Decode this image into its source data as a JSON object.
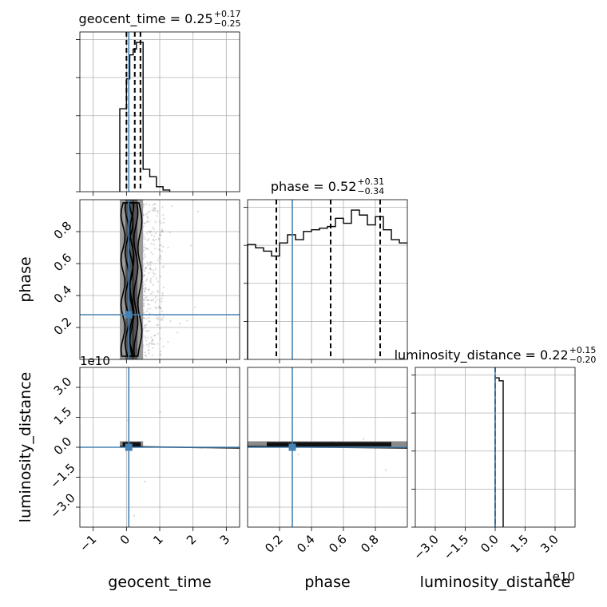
{
  "chart_data": {
    "type": "corner",
    "parameters": [
      "geocent_time",
      "phase",
      "luminosity_distance"
    ],
    "truths": {
      "geocent_time": 0.07,
      "phase": 0.28,
      "luminosity_distance": 0.0
    },
    "titles": [
      {
        "param": "geocent_time",
        "base": "geocent_time = 0.25",
        "plus": "+0.17",
        "minus": "−0.25"
      },
      {
        "param": "phase",
        "base": "phase = 0.52",
        "plus": "+0.31",
        "minus": "−0.34"
      },
      {
        "param": "luminosity_distance",
        "base": "luminosity_distance = 0.22",
        "plus": "+0.15",
        "minus": "−0.20"
      }
    ],
    "axes": {
      "geocent_time": {
        "range": [
          -1.4,
          3.4
        ],
        "ticks": [
          -1,
          0,
          1,
          2,
          3
        ],
        "tick_labels": [
          "−1",
          "0",
          "1",
          "2",
          "3"
        ],
        "label": "geocent_time"
      },
      "phase": {
        "range": [
          0.0,
          1.0
        ],
        "ticks": [
          0.2,
          0.4,
          0.6,
          0.8
        ],
        "tick_labels": [
          "0.2",
          "0.4",
          "0.6",
          "0.8"
        ],
        "label": "phase"
      },
      "luminosity_distance": {
        "range": [
          -4.0,
          4.0
        ],
        "ticks": [
          -3.0,
          -1.5,
          0.0,
          1.5,
          3.0
        ],
        "tick_labels": [
          "−3.0",
          "−1.5",
          "0.0",
          "1.5",
          "3.0"
        ],
        "label": "luminosity_distance",
        "offset_text": "1e10"
      }
    },
    "histograms": {
      "geocent_time": {
        "bin_edges": [
          -0.2,
          0.0,
          0.1,
          0.2,
          0.3,
          0.5,
          0.7,
          0.9,
          1.1,
          1.3
        ],
        "counts": [
          1.0,
          1.36,
          1.65,
          1.72,
          1.8,
          0.27,
          0.18,
          0.06,
          0.02
        ],
        "quantiles": [
          0.0,
          0.25,
          0.42
        ]
      },
      "phase": {
        "bin_edges": [
          0.0,
          0.05,
          0.1,
          0.15,
          0.2,
          0.25,
          0.3,
          0.35,
          0.4,
          0.45,
          0.5,
          0.55,
          0.6,
          0.65,
          0.7,
          0.75,
          0.8,
          0.85,
          0.9,
          0.95,
          1.0
        ],
        "counts": [
          0.7,
          0.68,
          0.66,
          0.63,
          0.71,
          0.76,
          0.73,
          0.78,
          0.79,
          0.8,
          0.81,
          0.86,
          0.83,
          0.91,
          0.88,
          0.82,
          0.87,
          0.79,
          0.73,
          0.71
        ],
        "quantiles": [
          0.18,
          0.52,
          0.83
        ]
      },
      "luminosity_distance": {
        "bin_edges": [
          0.0,
          0.2,
          0.4
        ],
        "counts": [
          1.0,
          0.98
        ],
        "quantiles": [
          0.0
        ]
      }
    },
    "pair_densities": [
      {
        "x": "geocent_time",
        "y": "phase",
        "x_core": [
          -0.2,
          0.5
        ],
        "y_core": [
          0.0,
          1.0
        ]
      },
      {
        "x": "geocent_time",
        "y": "luminosity_distance",
        "x_core": [
          -0.2,
          0.5
        ],
        "y_core": [
          0.0,
          0.3
        ]
      },
      {
        "x": "phase",
        "y": "luminosity_distance",
        "x_core": [
          0.0,
          1.0
        ],
        "y_core": [
          0.0,
          0.3
        ]
      }
    ]
  }
}
